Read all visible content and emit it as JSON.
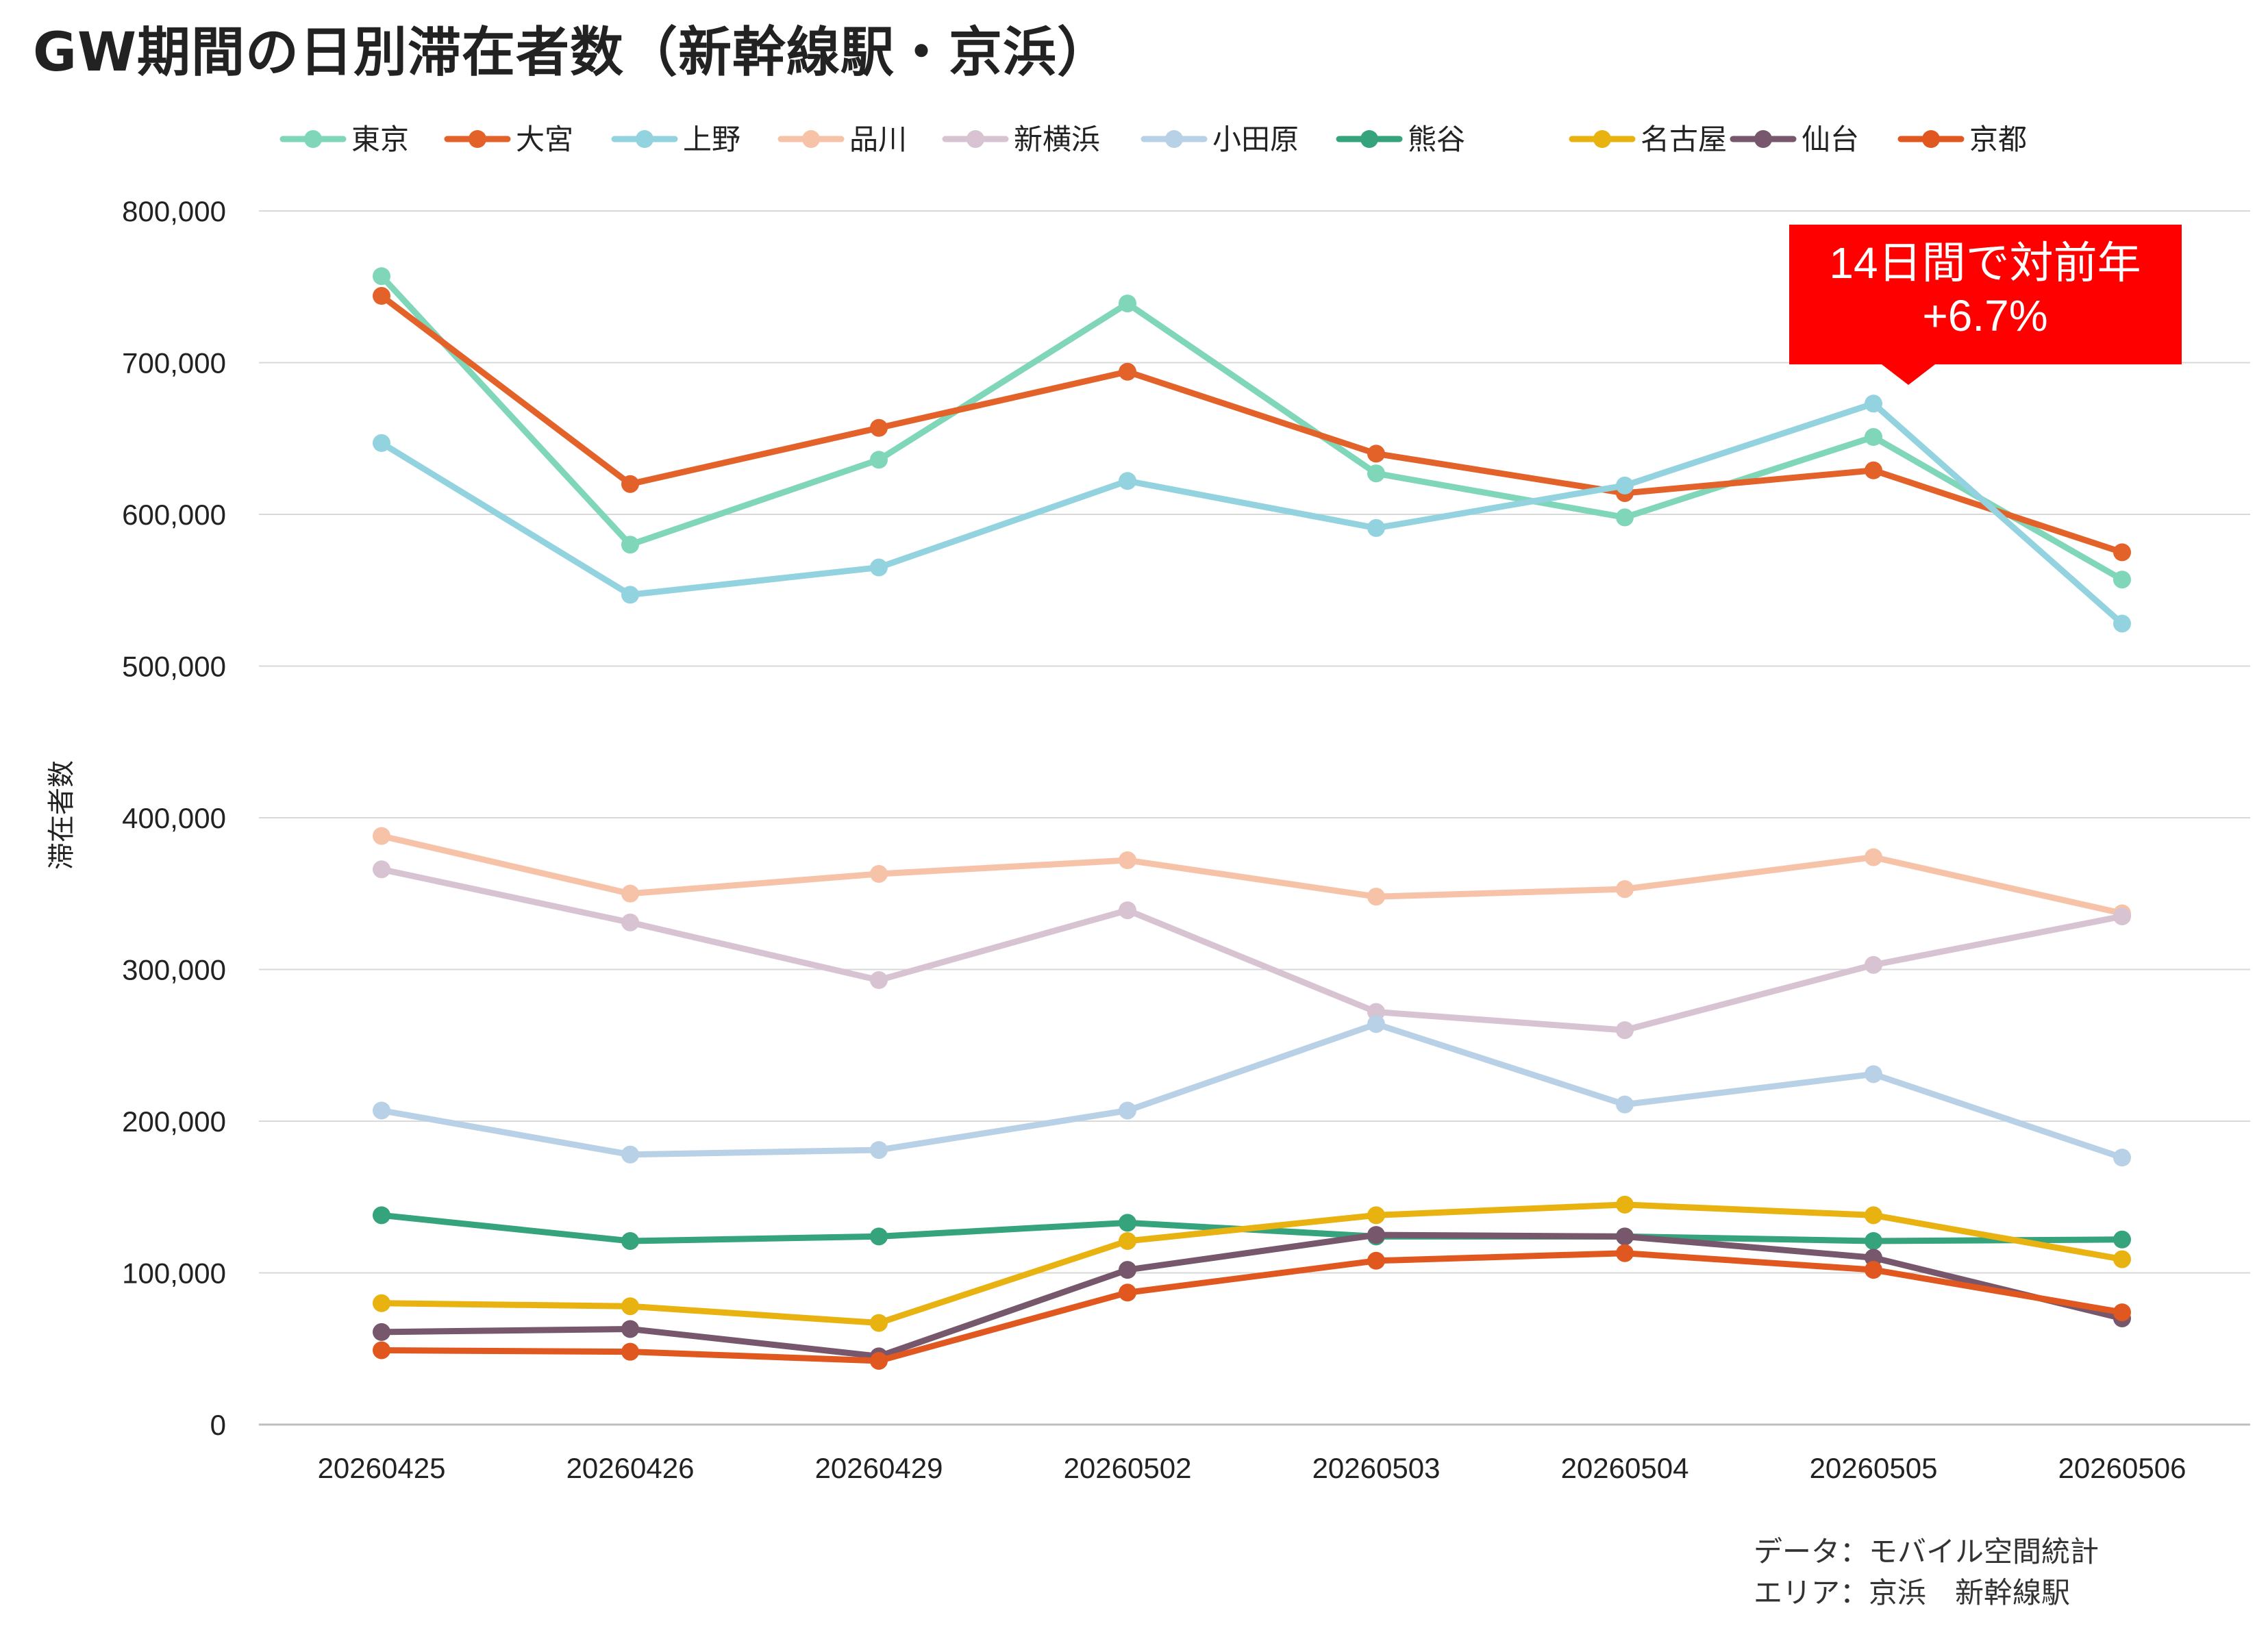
{
  "page": {
    "title": "GW期間の日別滞在者数（新幹線駅・京浜）"
  },
  "chart_data": {
    "type": "line",
    "title": "GW期間の日別滞在者数（新幹線駅・京浜）",
    "xlabel": "",
    "ylabel": "滞在者数",
    "ylim": [
      0,
      800000
    ],
    "yticks": [
      0,
      100000,
      200000,
      300000,
      400000,
      500000,
      600000,
      700000,
      800000
    ],
    "ytick_labels": [
      "0",
      "100,000",
      "200,000",
      "300,000",
      "400,000",
      "500,000",
      "600,000",
      "700,000",
      "800,000"
    ],
    "grid": true,
    "legend_position": "top",
    "categories": [
      "20260425",
      "20260426",
      "20260429",
      "20260502",
      "20260503",
      "20260504",
      "20260505",
      "20260506"
    ],
    "series": [
      {
        "name": "東京",
        "color": "#7fd6b8",
        "values": [
          757000,
          580000,
          636000,
          739000,
          627000,
          598000,
          651000,
          557000
        ]
      },
      {
        "name": "大宮",
        "color": "#e2622a",
        "values": [
          744000,
          620000,
          657000,
          694000,
          640000,
          614000,
          629000,
          575000
        ]
      },
      {
        "name": "上野",
        "color": "#93d3df",
        "values": [
          647000,
          547000,
          565000,
          622000,
          591000,
          619000,
          673000,
          528000
        ]
      },
      {
        "name": "品川",
        "color": "#f7c3a8",
        "values": [
          388000,
          350000,
          363000,
          372000,
          348000,
          353000,
          374000,
          337000
        ]
      },
      {
        "name": "新横浜",
        "color": "#d8c3d3",
        "values": [
          366000,
          331000,
          293000,
          339000,
          272000,
          260000,
          303000,
          335000
        ]
      },
      {
        "name": "小田原",
        "color": "#b9d1e6",
        "values": [
          207000,
          178000,
          181000,
          207000,
          264000,
          211000,
          231000,
          176000
        ]
      },
      {
        "name": "熊谷",
        "color": "#35a37b",
        "values": [
          138000,
          121000,
          124000,
          133000,
          124000,
          124000,
          121000,
          122000
        ]
      },
      {
        "name": "名古屋",
        "color": "#e8b211",
        "values": [
          80000,
          78000,
          67000,
          121000,
          138000,
          145000,
          138000,
          109000
        ]
      },
      {
        "name": "仙台",
        "color": "#76576b",
        "values": [
          61000,
          63000,
          45000,
          102000,
          125000,
          124000,
          110000,
          70000
        ]
      },
      {
        "name": "京都",
        "color": "#e0581f",
        "values": [
          49000,
          48000,
          42000,
          87000,
          108000,
          113000,
          102000,
          74000
        ]
      }
    ],
    "annotation": {
      "text_line1": "14日間で対前年",
      "text_line2": "+6.7%",
      "background": "#ff0000",
      "text_color": "#ffffff",
      "points_to": "20260505"
    },
    "notes": [
      "データ：モバイル空間統計",
      "エリア：京浜　新幹線駅"
    ]
  }
}
